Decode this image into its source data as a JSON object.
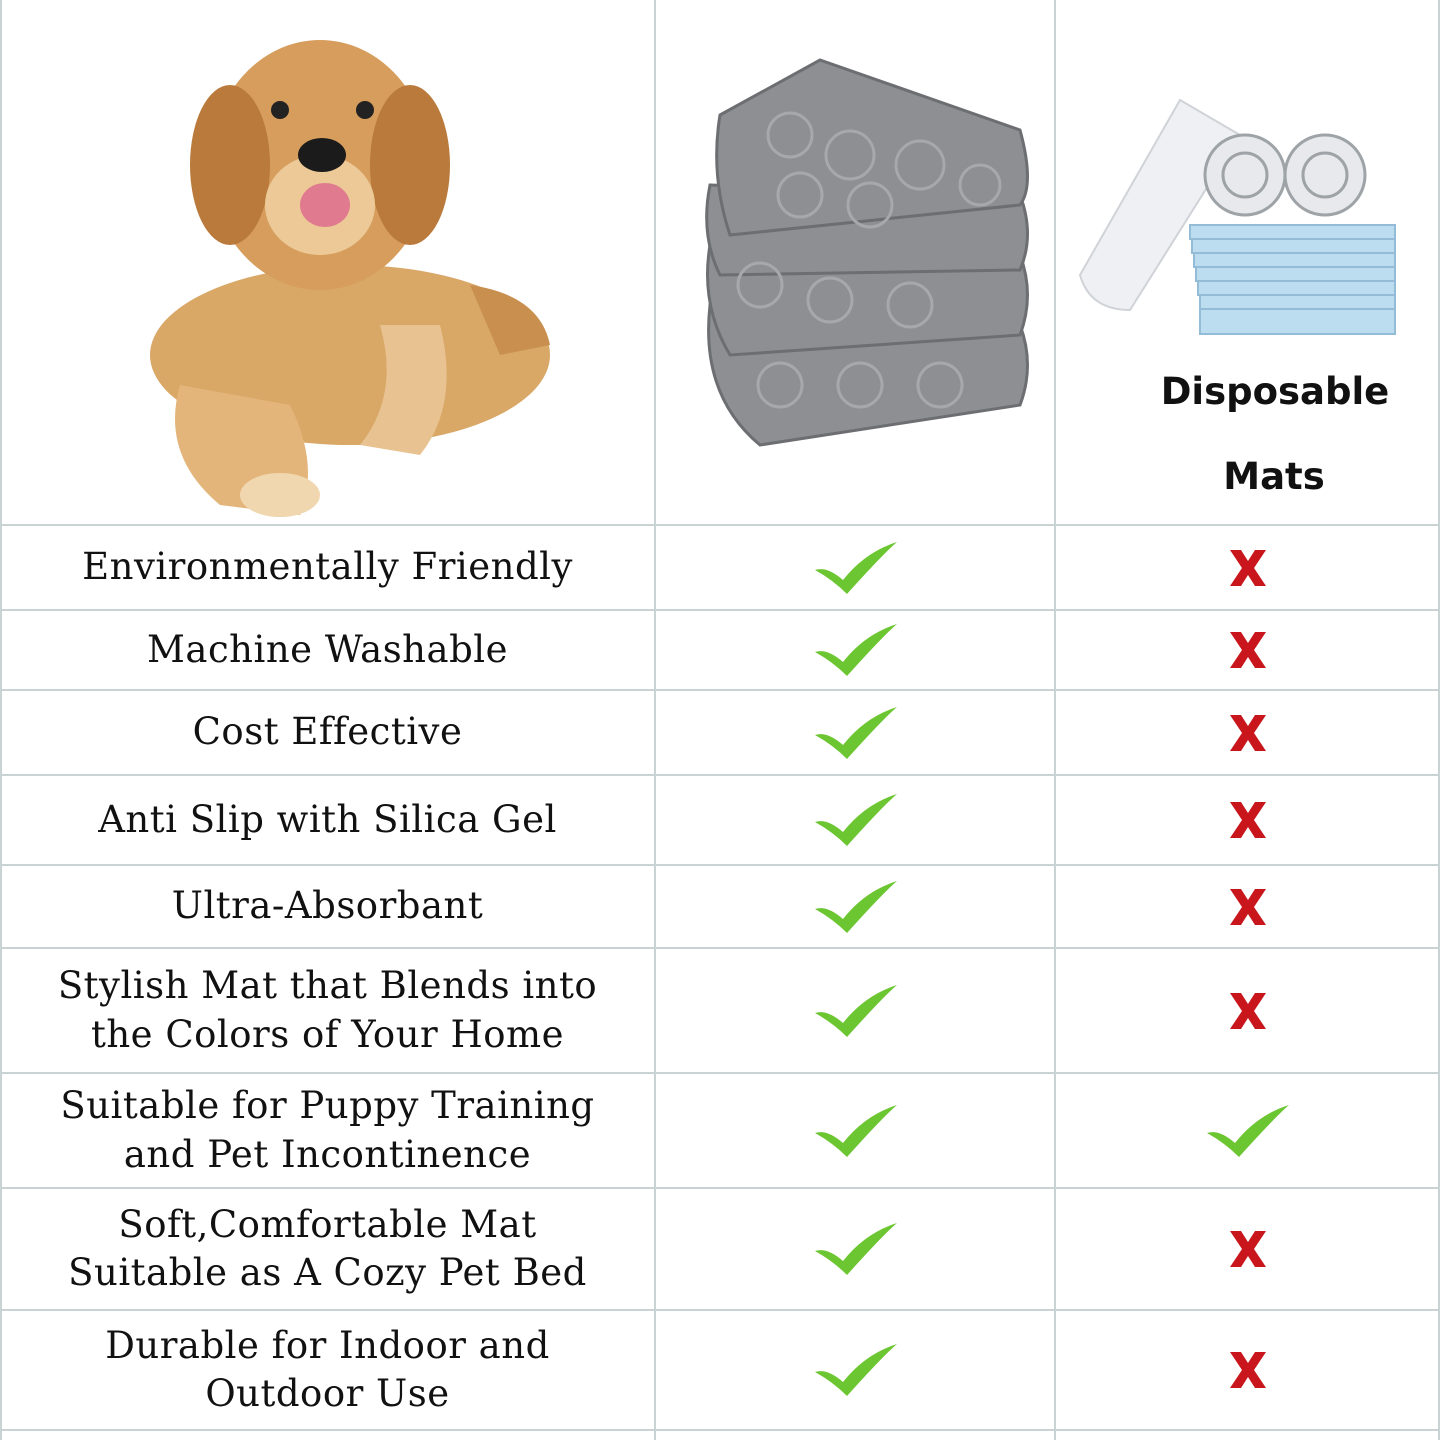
{
  "header": {
    "disposable_label_line1": "Disposable",
    "disposable_label_line2": "Mats"
  },
  "colors": {
    "check": "#6cc631",
    "cross": "#c8161c",
    "grid": "#c9d3d3"
  },
  "rows": [
    {
      "feature": [
        "Environmentally Friendly"
      ],
      "reusable": "check-icon",
      "disposable": "cross-icon"
    },
    {
      "feature": [
        "Machine Washable"
      ],
      "reusable": "check-icon",
      "disposable": "cross-icon"
    },
    {
      "feature": [
        "Cost Effective"
      ],
      "reusable": "check-icon",
      "disposable": "cross-icon"
    },
    {
      "feature": [
        "Anti Slip with Silica Gel"
      ],
      "reusable": "check-icon",
      "disposable": "cross-icon"
    },
    {
      "feature": [
        "Ultra-Absorbant"
      ],
      "reusable": "check-icon",
      "disposable": "cross-icon"
    },
    {
      "feature": [
        "Stylish Mat that Blends into",
        "the Colors of Your Home"
      ],
      "reusable": "check-icon",
      "disposable": "cross-icon"
    },
    {
      "feature": [
        "Suitable for Puppy Training",
        "and Pet Incontinence"
      ],
      "reusable": "check-icon",
      "disposable": "check-icon"
    },
    {
      "feature": [
        "Soft,Comfortable Mat",
        "Suitable as A Cozy Pet Bed"
      ],
      "reusable": "check-icon",
      "disposable": "cross-icon"
    },
    {
      "feature": [
        "Durable for Indoor and",
        "Outdoor Use"
      ],
      "reusable": "check-icon",
      "disposable": "cross-icon"
    }
  ]
}
